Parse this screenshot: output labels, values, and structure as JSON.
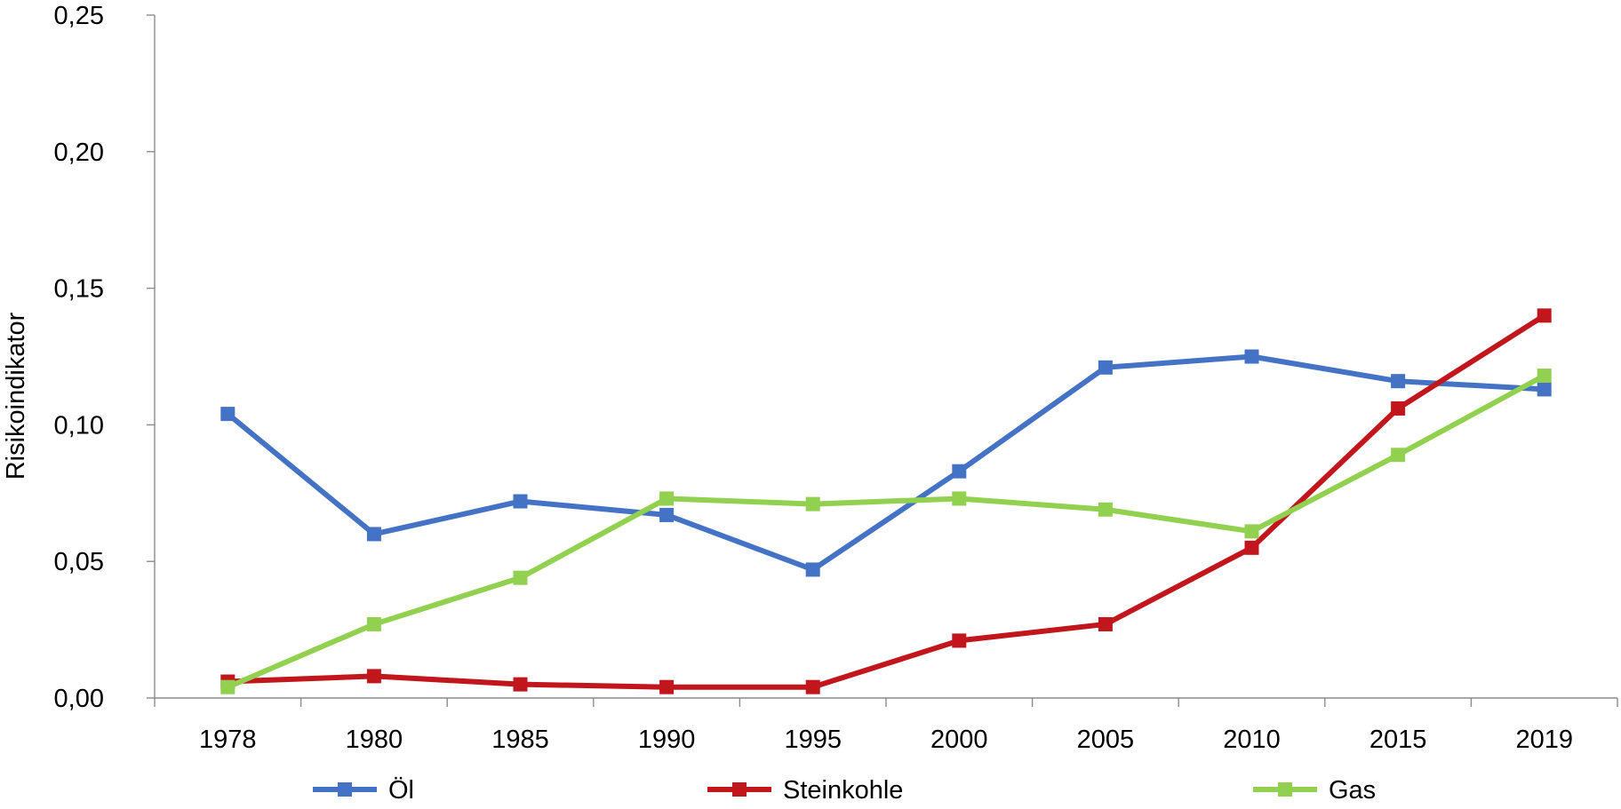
{
  "chart_data": {
    "type": "line",
    "title": "",
    "xlabel": "",
    "ylabel": "Risikoindikator",
    "ylim": [
      0,
      0.25
    ],
    "ytick_labels": [
      "0,00",
      "0,05",
      "0,10",
      "0,15",
      "0,20",
      "0,25"
    ],
    "categories": [
      "1978",
      "1980",
      "1985",
      "1990",
      "1995",
      "2000",
      "2005",
      "2010",
      "2015",
      "2019"
    ],
    "grid": false,
    "legend_position": "bottom",
    "series": [
      {
        "name": "Öl",
        "color": "#4472C4",
        "marker": "square",
        "values": [
          0.104,
          0.06,
          0.072,
          0.067,
          0.047,
          0.083,
          0.121,
          0.125,
          0.116,
          0.113
        ]
      },
      {
        "name": "Steinkohle",
        "color": "#C0161C",
        "marker": "square",
        "values": [
          0.006,
          0.008,
          0.005,
          0.004,
          0.004,
          0.021,
          0.027,
          0.055,
          0.106,
          0.14
        ]
      },
      {
        "name": "Gas",
        "color": "#92D050",
        "marker": "square",
        "values": [
          0.004,
          0.027,
          0.044,
          0.073,
          0.071,
          0.073,
          0.069,
          0.061,
          0.089,
          0.118
        ]
      }
    ]
  }
}
